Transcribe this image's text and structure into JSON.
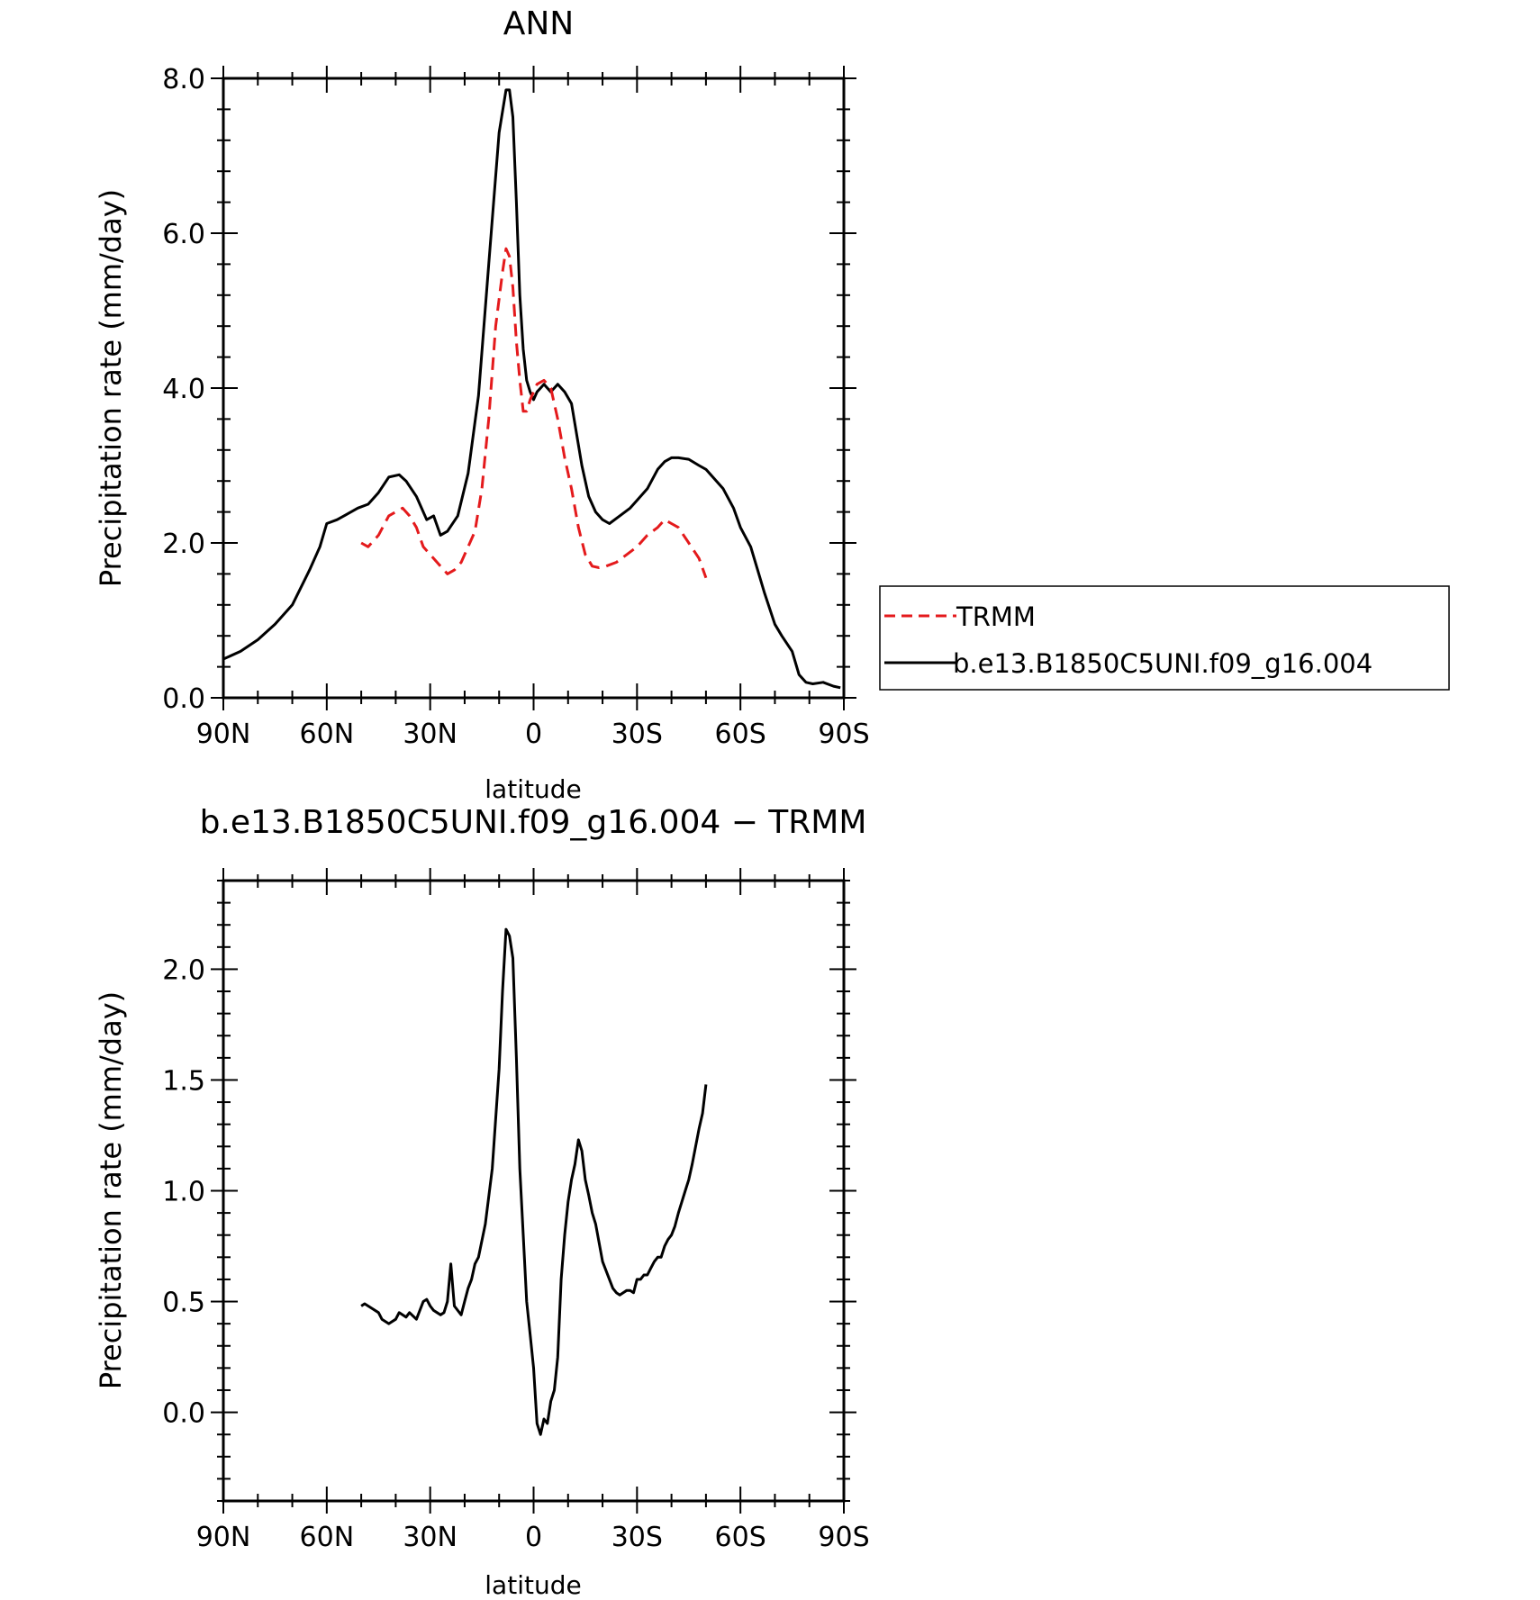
{
  "legend": {
    "entries": [
      {
        "label": "TRMM",
        "color": "#e41a1c",
        "dash": "dashed"
      },
      {
        "label": "b.e13.B1850C5UNI.f09_g16.004",
        "color": "#000000",
        "dash": "solid"
      }
    ]
  },
  "chart_data": [
    {
      "type": "line",
      "title": "ANN",
      "xlabel": "latitude",
      "ylabel": "Precipitation rate (mm/day)",
      "xlim": [
        90,
        -90
      ],
      "ylim": [
        0,
        8
      ],
      "x_ticks": [
        90,
        60,
        30,
        0,
        -30,
        -60,
        -90
      ],
      "x_tick_labels": [
        "90N",
        "60N",
        "30N",
        "0",
        "30S",
        "60S",
        "90S"
      ],
      "y_ticks": [
        0,
        2,
        4,
        6,
        8
      ],
      "y_tick_labels": [
        "0.0",
        "2.0",
        "4.0",
        "6.0",
        "8.0"
      ],
      "legend_position": "right",
      "series": [
        {
          "name": "b.e13.B1850C5UNI.f09_g16.004",
          "color": "#000000",
          "dash": "solid",
          "x": [
            90,
            85,
            80,
            75,
            70,
            65,
            62,
            60,
            57,
            55,
            51,
            48,
            45,
            42,
            39,
            37,
            34,
            31,
            29,
            27,
            25,
            22,
            19,
            16,
            13,
            10,
            8,
            7,
            6,
            5,
            4,
            3,
            2,
            1,
            0,
            -1,
            -2,
            -3,
            -4,
            -5,
            -7,
            -9,
            -11,
            -14,
            -16,
            -18,
            -20,
            -22,
            -25,
            -28,
            -30,
            -33,
            -36,
            -38,
            -40,
            -42,
            -45,
            -48,
            -50,
            -55,
            -58,
            -60,
            -63,
            -65,
            -67,
            -70,
            -72,
            -75,
            -77,
            -79,
            -81,
            -84,
            -87,
            -89
          ],
          "y": [
            0.5,
            0.6,
            0.75,
            0.95,
            1.2,
            1.65,
            1.95,
            2.25,
            2.3,
            2.35,
            2.45,
            2.5,
            2.65,
            2.85,
            2.88,
            2.8,
            2.6,
            2.3,
            2.35,
            2.1,
            2.15,
            2.35,
            2.9,
            3.9,
            5.6,
            7.3,
            7.85,
            7.85,
            7.5,
            6.4,
            5.2,
            4.5,
            4.1,
            3.95,
            3.85,
            3.95,
            4.0,
            4.05,
            4.0,
            3.95,
            4.05,
            3.95,
            3.8,
            3.0,
            2.6,
            2.4,
            2.3,
            2.25,
            2.35,
            2.45,
            2.55,
            2.7,
            2.95,
            3.05,
            3.1,
            3.1,
            3.08,
            3.0,
            2.95,
            2.7,
            2.45,
            2.2,
            1.95,
            1.65,
            1.35,
            0.95,
            0.8,
            0.6,
            0.3,
            0.2,
            0.18,
            0.2,
            0.15,
            0.13
          ]
        },
        {
          "name": "TRMM",
          "color": "#e41a1c",
          "dash": "dashed",
          "x": [
            50,
            48,
            45,
            42,
            40,
            38,
            36,
            34,
            32,
            30,
            28,
            25,
            23,
            21,
            19,
            17,
            15,
            13,
            11,
            9,
            8,
            7,
            6,
            5,
            4,
            3,
            2,
            1,
            0,
            -1,
            -3,
            -5,
            -7,
            -9,
            -11,
            -13,
            -15,
            -17,
            -19,
            -21,
            -24,
            -27,
            -30,
            -33,
            -36,
            -38,
            -40,
            -42,
            -45,
            -48,
            -50
          ],
          "y": [
            2.0,
            1.95,
            2.1,
            2.35,
            2.4,
            2.45,
            2.35,
            2.2,
            1.95,
            1.85,
            1.75,
            1.6,
            1.65,
            1.75,
            1.95,
            2.15,
            2.7,
            3.6,
            4.8,
            5.5,
            5.8,
            5.7,
            5.3,
            4.6,
            4.1,
            3.7,
            3.7,
            3.85,
            3.95,
            4.05,
            4.1,
            4.0,
            3.6,
            3.1,
            2.7,
            2.2,
            1.85,
            1.7,
            1.68,
            1.7,
            1.75,
            1.85,
            1.95,
            2.1,
            2.2,
            2.3,
            2.25,
            2.2,
            2.0,
            1.8,
            1.55
          ]
        }
      ]
    },
    {
      "type": "line",
      "title": "b.e13.B1850C5UNI.f09_g16.004 − TRMM",
      "xlabel": "latitude",
      "ylabel": "Precipitation rate (mm/day)",
      "xlim": [
        90,
        -90
      ],
      "ylim": [
        -0.4,
        2.4
      ],
      "x_ticks": [
        90,
        60,
        30,
        0,
        -30,
        -60,
        -90
      ],
      "x_tick_labels": [
        "90N",
        "60N",
        "30N",
        "0",
        "30S",
        "60S",
        "90S"
      ],
      "y_ticks": [
        0,
        0.5,
        1.0,
        1.5,
        2.0
      ],
      "y_tick_labels": [
        "0.0",
        "0.5",
        "1.0",
        "1.5",
        "2.0"
      ],
      "series": [
        {
          "color": "#000000",
          "dash": "solid",
          "x": [
            50,
            49,
            47,
            45,
            44,
            42,
            40,
            39,
            38,
            37,
            36,
            34,
            32,
            31,
            30,
            29,
            28,
            27,
            26,
            25,
            24,
            23,
            21,
            20,
            19,
            18,
            17,
            16,
            14,
            12,
            10,
            9,
            8,
            7,
            6,
            5,
            4,
            3,
            2,
            1,
            0,
            -1,
            -2,
            -3,
            -4,
            -5,
            -6,
            -7,
            -8,
            -9,
            -10,
            -11,
            -12,
            -13,
            -14,
            -15,
            -16,
            -17,
            -18,
            -20,
            -22,
            -23,
            -24,
            -25,
            -26,
            -27,
            -28,
            -29,
            -30,
            -31,
            -32,
            -33,
            -34,
            -35,
            -36,
            -37,
            -38,
            -39,
            -40,
            -41,
            -42,
            -43,
            -44,
            -45,
            -46,
            -47,
            -48,
            -49,
            -50
          ],
          "y": [
            0.48,
            0.49,
            0.47,
            0.45,
            0.42,
            0.4,
            0.42,
            0.45,
            0.44,
            0.43,
            0.45,
            0.42,
            0.5,
            0.51,
            0.48,
            0.46,
            0.45,
            0.44,
            0.45,
            0.5,
            0.67,
            0.48,
            0.44,
            0.5,
            0.56,
            0.6,
            0.67,
            0.7,
            0.85,
            1.1,
            1.55,
            1.9,
            2.18,
            2.15,
            2.05,
            1.6,
            1.1,
            0.8,
            0.5,
            0.35,
            0.2,
            -0.05,
            -0.1,
            -0.03,
            -0.05,
            0.05,
            0.1,
            0.25,
            0.6,
            0.8,
            0.95,
            1.05,
            1.12,
            1.23,
            1.18,
            1.05,
            0.98,
            0.9,
            0.85,
            0.68,
            0.6,
            0.56,
            0.54,
            0.53,
            0.54,
            0.55,
            0.55,
            0.54,
            0.6,
            0.6,
            0.62,
            0.62,
            0.65,
            0.68,
            0.7,
            0.7,
            0.75,
            0.78,
            0.8,
            0.84,
            0.9,
            0.95,
            1.0,
            1.05,
            1.12,
            1.2,
            1.28,
            1.35,
            1.48
          ]
        }
      ]
    }
  ]
}
